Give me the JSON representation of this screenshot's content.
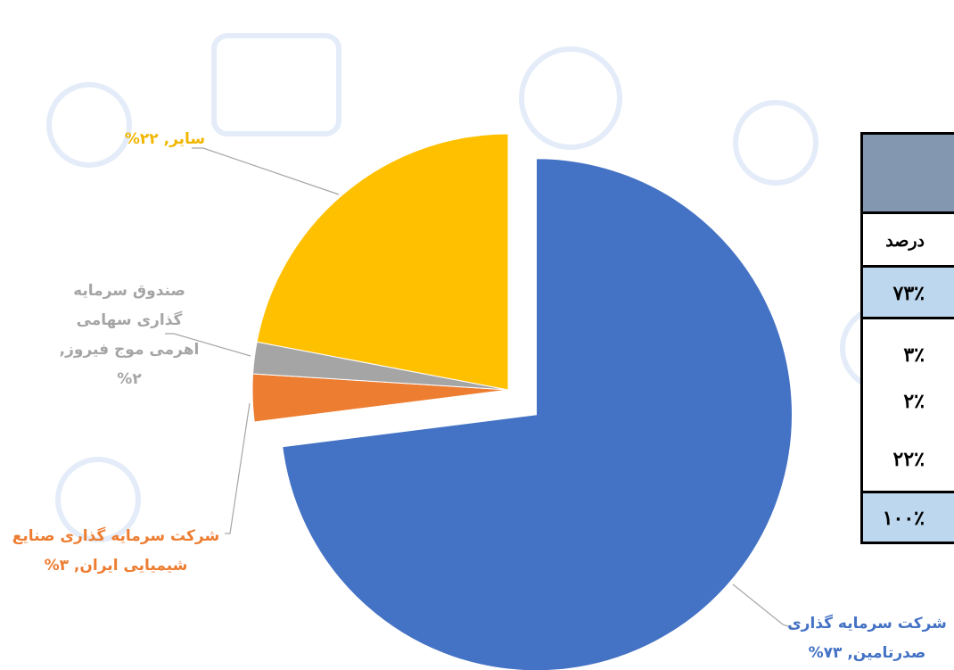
{
  "chart_data": {
    "type": "pie",
    "values": [
      73,
      3,
      2,
      22
    ],
    "value_labels": [
      "شرکت سرمایه گذاری صدرتامین, ۷۳%",
      "شرکت سرمایه گذاری صنایع شیمیایی ایران, ۳%",
      "صندوق سرمایه گذاری سهامی اهرمی موج فیروز, ۲%",
      "سایر, ۲۲%"
    ],
    "colors": [
      "#4472c4",
      "#ed7d31",
      "#a5a5a5",
      "#ffc000"
    ],
    "label_colors": [
      "#4472c4",
      "#ed7d31",
      "#a5a5a5",
      "#f2b600"
    ]
  },
  "table": {
    "header": "درصد",
    "rows": [
      "۷۳٪",
      "۳٪",
      "۲٪",
      "۲۲٪",
      "۱۰۰٪"
    ]
  }
}
